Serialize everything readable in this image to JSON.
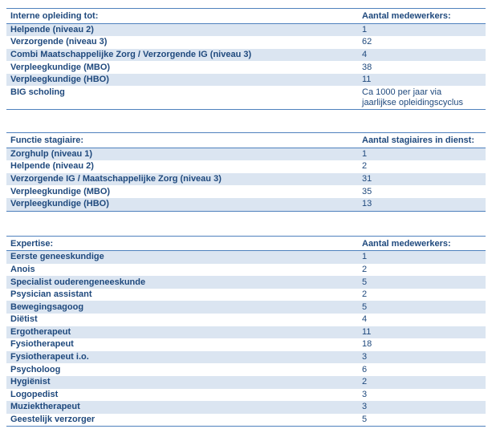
{
  "colors": {
    "text": "#1F497D",
    "band_row": "#DBE5F1",
    "border": "#4F81BD"
  },
  "tables": [
    {
      "name": "interne-opleiding",
      "headers": [
        "Interne opleiding tot:",
        "Aantal medewerkers:"
      ],
      "rows": [
        [
          "Helpende (niveau 2)",
          "1"
        ],
        [
          "Verzorgende (niveau 3)",
          "62"
        ],
        [
          "Combi Maatschappelijke Zorg / Verzorgende IG (niveau 3)",
          "4"
        ],
        [
          "Verpleegkundige (MBO)",
          "38"
        ],
        [
          "Verpleegkundige (HBO)",
          "11"
        ],
        [
          "BIG scholing",
          "Ca 1000 per jaar via\njaarlijkse opleidingscyclus"
        ]
      ]
    },
    {
      "name": "functie-stagiaire",
      "headers": [
        "Functie stagiaire:",
        "Aantal stagiaires in dienst:"
      ],
      "rows": [
        [
          "Zorghulp (niveau 1)",
          "1"
        ],
        [
          "Helpende (niveau 2)",
          "2"
        ],
        [
          "Verzorgende IG / Maatschappelijke Zorg (niveau 3)",
          "31"
        ],
        [
          "Verpleegkundige (MBO)",
          "35"
        ],
        [
          "Verpleegkundige (HBO)",
          "13"
        ]
      ]
    },
    {
      "name": "expertise",
      "headers": [
        "Expertise:",
        "Aantal medewerkers:"
      ],
      "rows": [
        [
          "Eerste geneeskundige",
          "1"
        ],
        [
          "Anois",
          "2"
        ],
        [
          "Specialist ouderengeneeskunde",
          "5"
        ],
        [
          "Psysician assistant",
          "2"
        ],
        [
          "Bewegingsagoog",
          "5"
        ],
        [
          "Diëtist",
          "4"
        ],
        [
          "Ergotherapeut",
          "11"
        ],
        [
          "Fysiotherapeut",
          "18"
        ],
        [
          "Fysiotherapeut i.o.",
          "3"
        ],
        [
          "Psycholoog",
          "6"
        ],
        [
          "Hygiënist",
          "2"
        ],
        [
          "Logopedist",
          "3"
        ],
        [
          "Muziektherapeut",
          "3"
        ],
        [
          "Geestelijk verzorger",
          "5"
        ]
      ]
    }
  ]
}
